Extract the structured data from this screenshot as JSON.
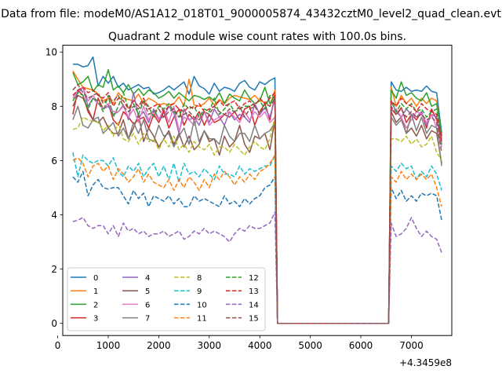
{
  "suptitle": "Data from file: modeM0/AS1A12_018T01_9000005874_43432cztM0_level2_quad_clean.evt",
  "chart_data": {
    "type": "line",
    "title": "Quadrant 2 module wise count rates with 100.0s bins.",
    "xlabel": "",
    "ylabel": "",
    "x_offset_label": "+4.3459e8",
    "xlim": [
      100,
      7800
    ],
    "ylim": [
      -0.45,
      10.25
    ],
    "x_ticks": [
      0,
      1000,
      2000,
      3000,
      4000,
      5000,
      6000,
      7000
    ],
    "y_ticks": [
      0,
      2,
      4,
      6,
      8,
      10
    ],
    "grid": false,
    "legend": {
      "placement": "lower-left",
      "columns": 4
    },
    "gap": {
      "start": 4300,
      "down": [
        4350,
        4400,
        4450,
        4500
      ],
      "up": [
        6400,
        6450,
        6500,
        6550
      ],
      "resume": 6600
    },
    "x_start": 300,
    "x_step": 100,
    "series": [
      {
        "name": "0",
        "color": "#1f77b4",
        "dash": "solid",
        "seg1": [
          9.55,
          9.55,
          9.45,
          9.5,
          9.82,
          8.75,
          9.1,
          8.85,
          9.1,
          8.7,
          8.85,
          8.6,
          8.7,
          8.8,
          8.65,
          8.7,
          8.45,
          8.5,
          8.6,
          8.75,
          8.6,
          8.75,
          8.9,
          8.45,
          9.1,
          8.75,
          8.65,
          8.45,
          8.85,
          8.55,
          8.7,
          8.65,
          8.55,
          8.85,
          8.95,
          8.7,
          8.6,
          8.9,
          8.8,
          8.95,
          9.05
        ],
        "seg2": [
          8.9,
          8.6,
          8.55,
          8.7,
          8.55,
          8.6,
          8.55,
          8.75,
          8.55,
          8.5,
          7.0
        ]
      },
      {
        "name": "1",
        "color": "#ff7f0e",
        "dash": "solid",
        "seg1": [
          9.3,
          9.0,
          8.7,
          8.65,
          8.6,
          8.45,
          8.2,
          8.3,
          8.1,
          8.5,
          8.3,
          8.25,
          8.2,
          8.45,
          8.1,
          8.3,
          8.2,
          8.05,
          8.1,
          8.05,
          8.1,
          8.35,
          8.0,
          9.0,
          8.05,
          8.0,
          8.1,
          8.3,
          8.05,
          8.25,
          8.1,
          8.3,
          8.4,
          8.35,
          8.3,
          8.25,
          8.4,
          8.2,
          8.15,
          8.0,
          8.6
        ],
        "seg2": [
          8.7,
          8.0,
          8.4,
          8.1,
          8.3,
          8.0,
          8.3,
          8.1,
          8.3,
          8.2,
          6.8
        ]
      },
      {
        "name": "2",
        "color": "#2ca02c",
        "dash": "solid",
        "seg1": [
          9.25,
          8.8,
          8.9,
          9.1,
          8.55,
          8.8,
          8.7,
          9.35,
          8.6,
          8.75,
          8.5,
          8.8,
          8.45,
          8.65,
          8.4,
          8.6,
          8.5,
          8.3,
          8.4,
          8.55,
          8.3,
          8.5,
          8.35,
          8.2,
          8.4,
          8.35,
          8.25,
          8.35,
          8.2,
          8.5,
          8.1,
          8.45,
          8.3,
          8.2,
          8.6,
          8.3,
          8.1,
          8.2,
          8.7,
          8.1,
          8.4
        ],
        "seg2": [
          8.6,
          8.3,
          8.9,
          8.4,
          8.5,
          8.3,
          8.2,
          8.5,
          8.0,
          8.1,
          6.9
        ]
      },
      {
        "name": "3",
        "color": "#d62728",
        "dash": "solid",
        "seg1": [
          7.7,
          8.6,
          8.4,
          7.8,
          7.5,
          8.3,
          7.9,
          8.1,
          7.5,
          7.3,
          7.8,
          7.6,
          7.35,
          7.5,
          7.6,
          7.2,
          7.7,
          7.4,
          7.8,
          7.2,
          7.6,
          7.9,
          7.3,
          7.7,
          7.5,
          7.8,
          7.3,
          7.7,
          7.4,
          7.5,
          7.7,
          7.6,
          7.8,
          7.5,
          7.9,
          8.0,
          7.3,
          7.8,
          8.1,
          7.5,
          8.4
        ],
        "seg2": [
          7.9,
          7.7,
          7.95,
          7.4,
          7.7,
          7.5,
          7.8,
          7.2,
          7.9,
          7.5,
          6.9
        ]
      },
      {
        "name": "4",
        "color": "#9467bd",
        "dash": "solid",
        "seg1": [
          8.2,
          8.5,
          8.7,
          8.0,
          8.3,
          8.1,
          7.9,
          8.0,
          7.7,
          7.8,
          8.05,
          7.5,
          8.5,
          7.6,
          7.8,
          7.4,
          7.9,
          7.55,
          7.6,
          8.0,
          7.75,
          7.0,
          7.9,
          7.5,
          7.6,
          7.3,
          7.8,
          7.4,
          7.9,
          7.6,
          7.3,
          7.8,
          7.5,
          7.7,
          7.6,
          7.4,
          8.1,
          7.7,
          7.95,
          7.6,
          8.3
        ],
        "seg2": [
          8.2,
          7.8,
          7.6,
          7.9,
          7.7,
          7.6,
          7.8,
          7.3,
          7.7,
          7.6,
          6.6
        ]
      },
      {
        "name": "5",
        "color": "#8c564b",
        "dash": "solid",
        "seg1": [
          8.0,
          8.4,
          8.3,
          7.9,
          7.5,
          7.4,
          7.6,
          7.2,
          7.0,
          7.0,
          7.5,
          6.8,
          7.2,
          7.7,
          6.7,
          7.2,
          6.9,
          6.5,
          6.8,
          7.1,
          6.6,
          7.0,
          6.5,
          6.9,
          6.4,
          6.6,
          7.1,
          6.7,
          6.8,
          6.2,
          6.9,
          6.5,
          6.7,
          7.3,
          6.6,
          6.3,
          6.9,
          6.8,
          7.0,
          6.4,
          7.5
        ],
        "seg2": [
          7.8,
          7.4,
          7.6,
          7.0,
          7.2,
          6.9,
          7.3,
          6.8,
          7.1,
          7.0,
          5.9
        ]
      },
      {
        "name": "6",
        "color": "#e377c2",
        "dash": "solid",
        "seg1": [
          8.3,
          8.6,
          8.7,
          8.2,
          8.4,
          8.1,
          7.9,
          8.1,
          7.8,
          7.8,
          8.0,
          7.6,
          7.9,
          7.4,
          8.0,
          7.5,
          7.8,
          7.5,
          7.9,
          7.4,
          8.0,
          7.1,
          7.6,
          7.5,
          7.3,
          7.7,
          7.8,
          7.3,
          7.5,
          7.6,
          7.7,
          7.8,
          7.6,
          7.4,
          7.8,
          7.5,
          7.8,
          7.6,
          7.8,
          7.4,
          7.6
        ],
        "seg2": [
          7.8,
          7.9,
          7.6,
          7.2,
          7.5,
          7.8,
          7.7,
          7.4,
          7.7,
          7.2,
          6.5
        ]
      },
      {
        "name": "7",
        "color": "#7f7f7f",
        "dash": "solid",
        "seg1": [
          7.5,
          8.0,
          7.3,
          7.2,
          7.5,
          7.6,
          7.0,
          7.2,
          7.4,
          6.9,
          7.2,
          6.8,
          7.4,
          7.0,
          7.5,
          6.8,
          6.7,
          7.3,
          6.9,
          7.0,
          6.5,
          6.9,
          7.2,
          6.6,
          7.5,
          6.7,
          7.1,
          6.8,
          6.8,
          6.6,
          7.3,
          6.9,
          6.7,
          7.0,
          7.0,
          6.7,
          7.3,
          6.8,
          7.0,
          7.1,
          7.4
        ],
        "seg2": [
          7.6,
          7.3,
          7.5,
          7.0,
          7.7,
          7.1,
          7.6,
          7.0,
          7.3,
          7.2,
          5.8
        ]
      },
      {
        "name": "8",
        "color": "#bcbd22",
        "dash": "dashed",
        "seg1": [
          7.15,
          7.2,
          7.6,
          7.5,
          7.45,
          7.4,
          7.1,
          7.3,
          6.9,
          7.4,
          6.8,
          6.7,
          7.0,
          6.6,
          7.0,
          6.7,
          6.8,
          6.4,
          6.8,
          6.5,
          6.9,
          6.4,
          6.6,
          6.3,
          6.7,
          6.5,
          6.4,
          6.6,
          6.2,
          6.5,
          6.5,
          6.3,
          6.6,
          6.4,
          6.2,
          6.5,
          6.7,
          6.5,
          6.4,
          6.8,
          7.6
        ],
        "seg2": [
          6.8,
          6.8,
          6.7,
          6.9,
          6.6,
          6.8,
          6.5,
          6.6,
          6.9,
          6.3,
          6.0
        ]
      },
      {
        "name": "9",
        "color": "#17becf",
        "dash": "dashed",
        "seg1": [
          6.3,
          5.4,
          6.2,
          6.0,
          5.9,
          6.0,
          6.0,
          5.8,
          6.1,
          5.6,
          5.4,
          5.8,
          5.6,
          5.9,
          5.4,
          5.7,
          5.9,
          5.4,
          5.8,
          5.3,
          5.9,
          5.2,
          5.9,
          5.5,
          5.6,
          5.4,
          5.7,
          5.5,
          5.3,
          5.8,
          5.5,
          5.5,
          5.4,
          5.8,
          5.5,
          5.7,
          5.6,
          5.7,
          5.8,
          5.8,
          6.2
        ],
        "seg2": [
          5.8,
          5.6,
          5.9,
          5.7,
          5.8,
          5.3,
          5.6,
          5.4,
          5.8,
          5.5,
          4.9
        ]
      },
      {
        "name": "10",
        "color": "#1f77b4",
        "dash": "dashed",
        "seg1": [
          5.4,
          5.2,
          5.6,
          4.7,
          5.1,
          5.3,
          5.0,
          4.95,
          5.0,
          5.0,
          4.7,
          4.4,
          4.9,
          4.6,
          4.8,
          4.3,
          4.7,
          4.6,
          4.5,
          4.7,
          4.4,
          4.6,
          4.3,
          4.3,
          4.7,
          4.5,
          4.6,
          4.5,
          4.4,
          4.3,
          4.7,
          4.4,
          4.5,
          4.3,
          4.6,
          4.4,
          4.6,
          4.7,
          5.0,
          5.1,
          5.4
        ],
        "seg2": [
          5.0,
          4.6,
          4.9,
          4.5,
          4.7,
          4.5,
          4.8,
          4.7,
          4.8,
          4.7,
          3.8
        ]
      },
      {
        "name": "11",
        "color": "#ff7f0e",
        "dash": "dashed",
        "seg1": [
          6.0,
          6.1,
          5.9,
          5.4,
          5.8,
          5.9,
          5.6,
          5.8,
          5.3,
          5.7,
          5.5,
          5.2,
          5.4,
          5.7,
          5.2,
          5.5,
          5.2,
          5.1,
          5.0,
          5.3,
          4.9,
          5.3,
          5.0,
          5.4,
          5.2,
          4.9,
          5.3,
          5.0,
          5.5,
          5.3,
          5.6,
          5.4,
          5.1,
          5.4,
          5.2,
          5.5,
          5.3,
          5.6,
          5.7,
          5.9,
          6.2
        ],
        "seg2": [
          5.4,
          5.2,
          5.6,
          5.3,
          5.5,
          5.3,
          5.5,
          5.3,
          5.5,
          5.0,
          4.3
        ]
      },
      {
        "name": "12",
        "color": "#2ca02c",
        "dash": "dashed",
        "seg1": [
          8.2,
          8.5,
          8.4,
          7.9,
          8.3,
          8.2,
          7.8,
          8.4,
          7.6,
          8.0,
          8.5,
          7.9,
          8.1,
          7.7,
          8.2,
          8.0,
          7.6,
          8.0,
          7.9,
          8.1,
          7.8,
          7.6,
          8.1,
          7.9,
          8.0,
          7.6,
          7.9,
          7.8,
          8.3,
          7.7,
          7.9,
          8.1,
          7.8,
          7.9,
          8.0,
          8.0,
          8.1,
          8.2,
          7.9,
          8.4,
          8.3
        ],
        "seg2": [
          8.2,
          7.8,
          8.1,
          7.9,
          8.1,
          7.8,
          7.9,
          7.6,
          7.8,
          7.9,
          6.6
        ]
      },
      {
        "name": "13",
        "color": "#d62728",
        "dash": "dashed",
        "seg1": [
          8.4,
          8.6,
          8.7,
          8.5,
          8.6,
          8.4,
          8.3,
          8.5,
          8.0,
          8.3,
          8.2,
          7.9,
          8.2,
          8.0,
          8.3,
          7.9,
          8.0,
          8.1,
          7.8,
          8.0,
          8.1,
          7.9,
          7.8,
          8.0,
          7.9,
          8.1,
          7.8,
          7.9,
          8.0,
          8.2,
          8.0,
          8.1,
          8.2,
          7.9,
          8.1,
          8.2,
          8.0,
          8.3,
          8.1,
          8.3,
          8.5
        ],
        "seg2": [
          8.2,
          8.0,
          8.3,
          8.1,
          8.0,
          7.8,
          8.1,
          7.9,
          7.8,
          7.7,
          6.7
        ]
      },
      {
        "name": "14",
        "color": "#9467bd",
        "dash": "dashed",
        "seg1": [
          3.75,
          3.8,
          3.9,
          3.6,
          3.5,
          3.6,
          3.6,
          3.3,
          3.6,
          3.2,
          3.7,
          3.4,
          3.5,
          3.3,
          3.4,
          3.2,
          3.3,
          3.3,
          3.4,
          3.2,
          3.3,
          3.4,
          3.1,
          3.2,
          3.4,
          3.3,
          3.5,
          3.3,
          3.4,
          3.3,
          3.2,
          3.0,
          3.3,
          3.5,
          3.4,
          3.6,
          3.5,
          3.5,
          3.6,
          3.7,
          4.1
        ],
        "seg2": [
          3.7,
          3.2,
          3.3,
          3.5,
          3.9,
          3.5,
          3.2,
          3.4,
          3.2,
          3.1,
          2.6
        ]
      },
      {
        "name": "15",
        "color": "#8c564b",
        "dash": "dashed",
        "seg1": [
          8.6,
          8.8,
          8.5,
          8.3,
          8.4,
          8.5,
          8.1,
          8.3,
          8.2,
          8.4,
          8.0,
          7.8,
          8.0,
          7.9,
          8.2,
          7.7,
          7.8,
          7.9,
          7.6,
          7.8,
          7.9,
          7.6,
          7.7,
          7.8,
          7.6,
          7.5,
          7.8,
          7.7,
          8.0,
          7.8,
          7.7,
          7.9,
          7.8,
          8.0,
          7.6,
          7.9,
          8.0,
          7.7,
          8.1,
          8.0,
          8.3
        ],
        "seg2": [
          8.0,
          7.7,
          7.9,
          7.6,
          7.8,
          7.6,
          7.7,
          7.5,
          7.6,
          7.4,
          6.3
        ]
      }
    ]
  }
}
